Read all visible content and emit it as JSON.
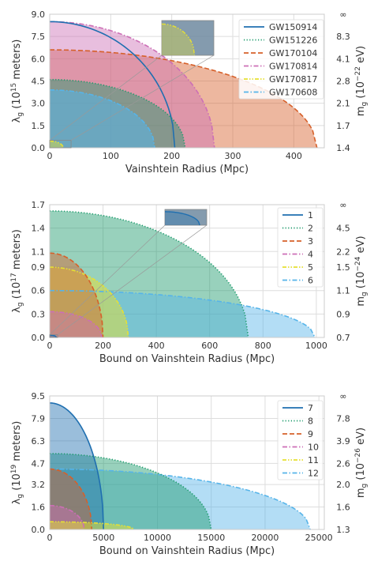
{
  "chart_data": [
    {
      "type": "area",
      "xlabel": "Vainshtein Radius (Mpc)",
      "ylabel": "λg (10^15 meters)",
      "ylabel_main": "λ",
      "ylabel_sub": "g",
      "ylabel_rest": " (10",
      "ylabel_exp": "15",
      "ylabel_end": " meters)",
      "y2label": "mg (10^-22 eV)",
      "y2label_main": "m",
      "y2label_sub": "g",
      "y2label_rest": " (10",
      "y2label_exp": "−22",
      "y2label_end": " eV)",
      "xlim": [
        0,
        450
      ],
      "ylim": [
        0,
        9
      ],
      "xticks": [
        0,
        100,
        200,
        300,
        400
      ],
      "xtick_labels": [
        "0",
        "100",
        "200",
        "300",
        "400"
      ],
      "yticks": [
        0,
        1.5,
        3,
        4.5,
        6,
        7.5,
        9
      ],
      "ytick_labels": [
        "0.0",
        "1.5",
        "3.0",
        "4.5",
        "6.0",
        "7.5",
        "9.0"
      ],
      "y2tick_labels": [
        "1.4",
        "1.7",
        "2.1",
        "2.8",
        "4.1",
        "8.3",
        "∞"
      ],
      "grid": true,
      "legend_position": "top-right",
      "series": [
        {
          "name": "GW150914",
          "color": "#1f6fb0",
          "style": "solid",
          "lambda_max": 8.5,
          "r_max": 205,
          "fill_alpha": 0.0
        },
        {
          "name": "GW151226",
          "color": "#1a9a6a",
          "style": "dotted",
          "lambda_max": 4.6,
          "r_max": 222,
          "fill_alpha": 0.45
        },
        {
          "name": "GW170104",
          "color": "#d6602a",
          "style": "dashed",
          "lambda_max": 6.6,
          "r_max": 438,
          "fill_alpha": 0.45
        },
        {
          "name": "GW170814",
          "color": "#cc6fb6",
          "style": "dashdot",
          "lambda_max": 8.5,
          "r_max": 270,
          "fill_alpha": 0.45
        },
        {
          "name": "GW170817",
          "color": "#e6e033",
          "style": "dashdotdot",
          "lambda_max": 0.45,
          "r_max": 22,
          "fill_alpha": 0.45
        },
        {
          "name": "GW170608",
          "color": "#56b4e9",
          "style": "dashdot",
          "lambda_max": 3.9,
          "r_max": 172,
          "fill_alpha": 0.55
        }
      ]
    },
    {
      "type": "area",
      "xlabel": "Bound on Vainshtein Radius (Mpc)",
      "ylabel": "λg (10^17 meters)",
      "ylabel_main": "λ",
      "ylabel_sub": "g",
      "ylabel_rest": " (10",
      "ylabel_exp": "17",
      "ylabel_end": " meters)",
      "y2label": "mg (10^-24 eV)",
      "y2label_main": "m",
      "y2label_sub": "g",
      "y2label_rest": " (10",
      "y2label_exp": "−24",
      "y2label_end": " eV)",
      "xlim": [
        0,
        1030
      ],
      "ylim": [
        0,
        1.7
      ],
      "xticks": [
        0,
        200,
        400,
        600,
        800,
        1000
      ],
      "xtick_labels": [
        "0",
        "200",
        "400",
        "600",
        "800",
        "1000"
      ],
      "yticks": [
        0,
        0.3,
        0.6,
        0.9,
        1.1,
        1.4,
        1.7
      ],
      "ytick_labels": [
        "0.0",
        "0.3",
        "0.6",
        "0.9",
        "1.1",
        "1.4",
        "1.7"
      ],
      "y2tick_labels": [
        "0.7",
        "0.9",
        "1.1",
        "1.5",
        "2.2",
        "4.5",
        "∞"
      ],
      "grid": true,
      "legend_position": "top-right",
      "series": [
        {
          "name": "1",
          "color": "#1f6fb0",
          "style": "solid",
          "lambda_max": 0.03,
          "r_max": 25,
          "fill_alpha": 0.4
        },
        {
          "name": "2",
          "color": "#1a9a6a",
          "style": "dotted",
          "lambda_max": 1.62,
          "r_max": 745,
          "fill_alpha": 0.45
        },
        {
          "name": "3",
          "color": "#d6602a",
          "style": "dashed",
          "lambda_max": 1.08,
          "r_max": 200,
          "fill_alpha": 0.45
        },
        {
          "name": "4",
          "color": "#cc6fb6",
          "style": "dashdot",
          "lambda_max": 0.33,
          "r_max": 195,
          "fill_alpha": 0.45
        },
        {
          "name": "5",
          "color": "#e6e033",
          "style": "dashdotdot",
          "lambda_max": 0.9,
          "r_max": 295,
          "fill_alpha": 0.5
        },
        {
          "name": "6",
          "color": "#56b4e9",
          "style": "dashdot",
          "lambda_max": 0.6,
          "r_max": 995,
          "fill_alpha": 0.45
        }
      ]
    },
    {
      "type": "area",
      "xlabel": "Bound on Vainshtein Radius (Mpc)",
      "ylabel": "λg (10^19 meters)",
      "ylabel_main": "λ",
      "ylabel_sub": "g",
      "ylabel_rest": " (10",
      "ylabel_exp": "19",
      "ylabel_end": " meters)",
      "y2label": "mg (10^-26 eV)",
      "y2label_main": "m",
      "y2label_sub": "g",
      "y2label_rest": " (10",
      "y2label_exp": "−26",
      "y2label_end": " eV)",
      "xlim": [
        0,
        25500
      ],
      "ylim": [
        0,
        9.5
      ],
      "xticks": [
        0,
        5000,
        10000,
        15000,
        20000,
        25000
      ],
      "xtick_labels": [
        "0",
        "5000",
        "10000",
        "15000",
        "20000",
        "25000"
      ],
      "yticks": [
        0,
        1.6,
        3.2,
        4.7,
        6.3,
        7.9,
        9.5
      ],
      "ytick_labels": [
        "0.0",
        "1.6",
        "3.2",
        "4.7",
        "6.3",
        "7.9",
        "9.5"
      ],
      "y2tick_labels": [
        "1.3",
        "1.6",
        "2.0",
        "2.6",
        "3.9",
        "7.8",
        "∞"
      ],
      "grid": true,
      "legend_position": "top-right",
      "series": [
        {
          "name": "7",
          "color": "#1f6fb0",
          "style": "solid",
          "lambda_max": 9.0,
          "r_max": 5000,
          "fill_alpha": 0.45
        },
        {
          "name": "8",
          "color": "#1a9a6a",
          "style": "dotted",
          "lambda_max": 5.4,
          "r_max": 15000,
          "fill_alpha": 0.45
        },
        {
          "name": "9",
          "color": "#d6602a",
          "style": "dashed",
          "lambda_max": 4.3,
          "r_max": 3900,
          "fill_alpha": 0.45
        },
        {
          "name": "10",
          "color": "#cc6fb6",
          "style": "dashdot",
          "lambda_max": 1.7,
          "r_max": 3200,
          "fill_alpha": 0.45
        },
        {
          "name": "11",
          "color": "#e6e033",
          "style": "dashdotdot",
          "lambda_max": 0.55,
          "r_max": 7800,
          "fill_alpha": 0.5
        },
        {
          "name": "12",
          "color": "#56b4e9",
          "style": "dashdot",
          "lambda_max": 4.3,
          "r_max": 24200,
          "fill_alpha": 0.45
        }
      ]
    }
  ]
}
